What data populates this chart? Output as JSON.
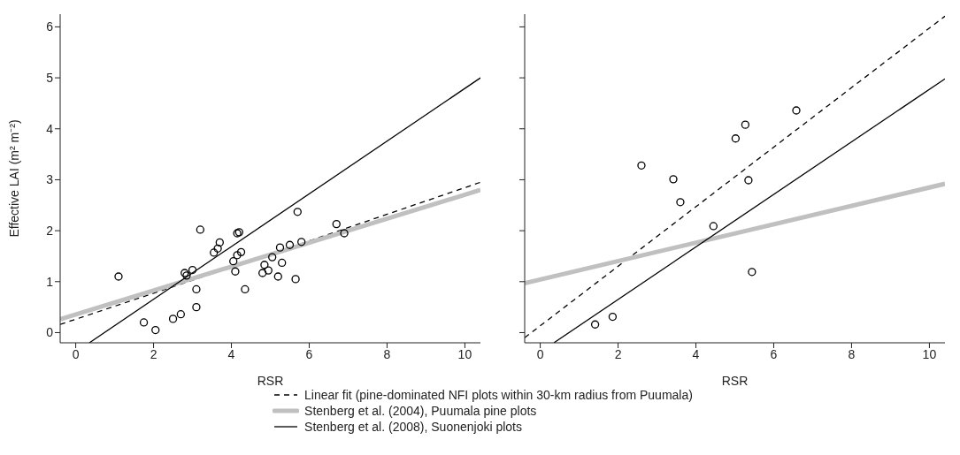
{
  "chart_data": [
    {
      "type": "scatter",
      "xlabel": "RSR",
      "ylabel": "Effective LAI (m² m⁻²)",
      "xlim": [
        -0.4,
        10.4
      ],
      "ylim": [
        -0.2,
        6.25
      ],
      "xticks": [
        0,
        2,
        4,
        6,
        8,
        10
      ],
      "yticks": [
        0,
        1,
        2,
        3,
        4,
        5,
        6
      ],
      "grid": false,
      "legend": "bottom",
      "series": [
        {
          "color": "#000000",
          "marker": "circle",
          "x": [
            1.1,
            1.75,
            2.05,
            2.5,
            2.7,
            2.8,
            2.85,
            3.0,
            3.1,
            3.1,
            3.2,
            3.55,
            3.65,
            3.7,
            4.05,
            4.1,
            4.15,
            4.15,
            4.2,
            4.25,
            4.35,
            4.8,
            4.85,
            4.95,
            5.05,
            5.2,
            5.25,
            5.3,
            5.5,
            5.65,
            5.7,
            5.8,
            6.7,
            6.9
          ],
          "values": [
            1.1,
            0.2,
            0.05,
            0.27,
            0.36,
            1.17,
            1.12,
            1.23,
            0.85,
            0.5,
            2.02,
            1.57,
            1.65,
            1.77,
            1.4,
            1.2,
            1.52,
            1.95,
            1.97,
            1.58,
            0.85,
            1.17,
            1.33,
            1.22,
            1.48,
            1.1,
            1.67,
            1.37,
            1.72,
            1.05,
            2.37,
            1.78,
            2.13,
            1.95
          ]
        },
        {
          "type": "line",
          "name": "Linear fit (pine-dominated NFI plots within 30-km radius from Puumala)",
          "color": "#000000",
          "line_style": "dashed",
          "x": [
            -0.4,
            5.7,
            10.4
          ],
          "values": [
            0.16,
            1.72,
            2.95
          ]
        },
        {
          "type": "line",
          "name": "Stenberg et al. (2004), Puumala pine plots",
          "color": "#c0c0c0",
          "line_style": "solid",
          "x": [
            -0.4,
            10.4
          ],
          "values": [
            0.26,
            2.8
          ]
        },
        {
          "type": "line",
          "name": "Stenberg et al. (2008), Suonenjoki plots",
          "color": "#000000",
          "line_style": "solid",
          "x": [
            0.35,
            10.4
          ],
          "values": [
            -0.2,
            5.0
          ]
        }
      ]
    },
    {
      "type": "scatter",
      "xlabel": "RSR",
      "xlim": [
        -0.4,
        10.4
      ],
      "ylim": [
        -0.2,
        6.25
      ],
      "xticks": [
        0,
        2,
        4,
        6,
        8,
        10
      ],
      "yticks": [
        {
          "value": 0,
          "label": null
        },
        {
          "value": 1,
          "label": null
        },
        {
          "value": 2,
          "label": null
        },
        {
          "value": 3,
          "label": null
        },
        {
          "value": 4,
          "label": null
        },
        {
          "value": 5,
          "label": null
        },
        {
          "value": 6,
          "label": null
        }
      ],
      "tick_labels": "x",
      "grid": false,
      "series": [
        {
          "color": "#000000",
          "marker": "circle",
          "x": [
            1.41,
            1.86,
            2.6,
            3.42,
            3.6,
            4.45,
            5.02,
            5.27,
            5.35,
            5.44,
            6.58
          ],
          "values": [
            0.16,
            0.31,
            3.28,
            3.01,
            2.56,
            2.09,
            3.81,
            4.08,
            2.99,
            1.19,
            4.36
          ]
        },
        {
          "type": "line",
          "color": "#000000",
          "line_style": "dashed",
          "x": [
            -0.4,
            10.4
          ],
          "values": [
            -0.1,
            6.21
          ]
        },
        {
          "type": "line",
          "color": "#c0c0c0",
          "line_style": "solid",
          "x": [
            -0.4,
            10.4
          ],
          "values": [
            0.97,
            2.92
          ]
        },
        {
          "type": "line",
          "color": "#000000",
          "line_style": "solid",
          "x": [
            0.35,
            10.4
          ],
          "values": [
            -0.2,
            4.98
          ]
        }
      ]
    }
  ]
}
